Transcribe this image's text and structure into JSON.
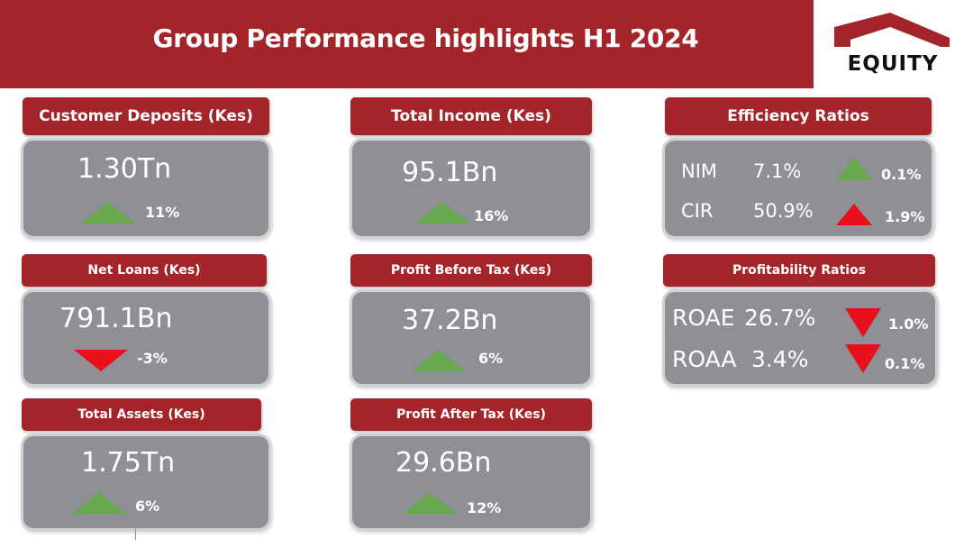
{
  "header": {
    "title": "Group Performance highlights H1 2024"
  },
  "logo": {
    "text": "EQUITY",
    "color": "#a3252a"
  },
  "colors": {
    "accent": "#a3252a",
    "card": "#8f9095",
    "up": "#6aa84f",
    "down": "#e8101b"
  },
  "metrics": {
    "deposits": {
      "label": "Customer Deposits (Kes)",
      "value": "1.30Tn",
      "change": "11%",
      "direction": "up"
    },
    "income": {
      "label": "Total Income (Kes)",
      "value": "95.1Bn",
      "change": "16%",
      "direction": "up"
    },
    "loans": {
      "label": "Net Loans (Kes)",
      "value": "791.1Bn",
      "change": "-3%",
      "direction": "down"
    },
    "pbt": {
      "label": "Profit Before Tax (Kes)",
      "value": "37.2Bn",
      "change": "6%",
      "direction": "up"
    },
    "assets": {
      "label": "Total Assets (Kes)",
      "value": "1.75Tn",
      "change": "6%",
      "direction": "up"
    },
    "pat": {
      "label": "Profit After Tax (Kes)",
      "value": "29.6Bn",
      "change": "12%",
      "direction": "up"
    }
  },
  "efficiency": {
    "label": "Efficiency Ratios",
    "rows": [
      {
        "name": "NIM",
        "value": "7.1%",
        "change": "0.1%",
        "direction": "up"
      },
      {
        "name": "CIR",
        "value": "50.9%",
        "change": "1.9%",
        "direction": "up-red"
      }
    ]
  },
  "profitability": {
    "label": "Profitability Ratios",
    "rows": [
      {
        "name": "ROAE",
        "value": "26.7%",
        "change": "1.0%",
        "direction": "down"
      },
      {
        "name": "ROAA",
        "value": "3.4%",
        "change": "0.1%",
        "direction": "down"
      }
    ]
  }
}
